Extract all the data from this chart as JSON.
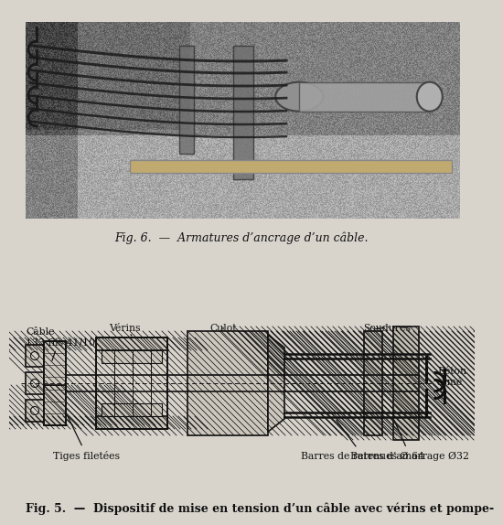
{
  "bg_color": "#d8d4cc",
  "fig6_caption": "Fig. 6.  —  Armatures d’ancrage d’un câble.",
  "fig5_caption": "Fig. 5.  —  Dispositif de mise en tension d’un câble avec vérins et pompe-",
  "labels": {
    "cable": "Câble\n133 fils 41/10",
    "verins": "Vérins",
    "culot": "Culot",
    "soudures": "Soudures",
    "tiges": "Tiges filetées",
    "barres_ret": "Barres de retenues Ø 64",
    "barres_amr": "Barres d’amarrage Ø32",
    "beton": "Béton\narmé"
  },
  "line_color": "#111111"
}
